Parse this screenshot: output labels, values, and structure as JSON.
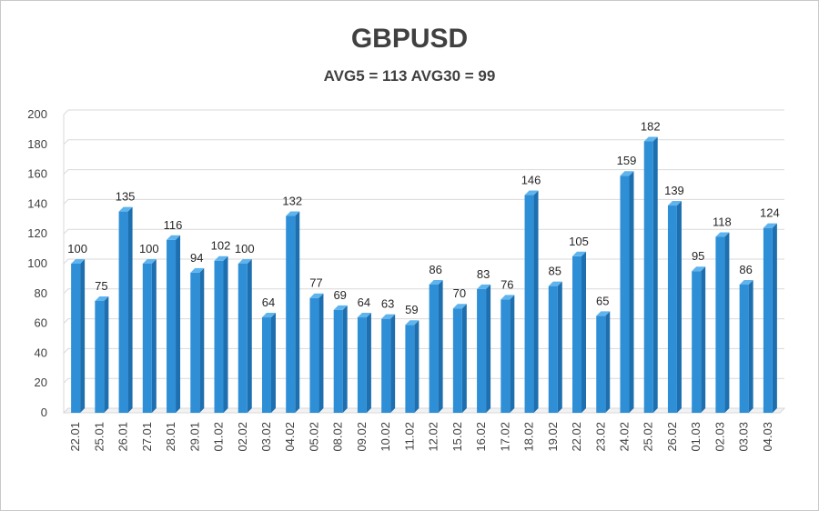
{
  "chart_data": {
    "type": "bar",
    "title": "GBPUSD",
    "subtitle": "AVG5 = 113 AVG30 = 99",
    "categories": [
      "22.01",
      "25.01",
      "26.01",
      "27.01",
      "28.01",
      "29.01",
      "01.02",
      "02.02",
      "03.02",
      "04.02",
      "05.02",
      "08.02",
      "09.02",
      "10.02",
      "11.02",
      "12.02",
      "15.02",
      "16.02",
      "17.02",
      "18.02",
      "19.02",
      "22.02",
      "23.02",
      "24.02",
      "25.02",
      "26.02",
      "01.03",
      "02.03",
      "03.03",
      "04.03"
    ],
    "values": [
      100,
      75,
      135,
      100,
      116,
      94,
      102,
      100,
      64,
      132,
      77,
      69,
      64,
      63,
      59,
      86,
      70,
      83,
      76,
      146,
      85,
      105,
      65,
      159,
      182,
      139,
      95,
      118,
      86,
      124
    ],
    "ylim": [
      0,
      200
    ],
    "yticks": [
      0,
      20,
      40,
      60,
      80,
      100,
      120,
      140,
      160,
      180,
      200
    ],
    "grid": true,
    "bar_color": "#2e8fd6",
    "bar_side_color": "#1d6fb0",
    "bar_top_color": "#5fb4ee"
  }
}
